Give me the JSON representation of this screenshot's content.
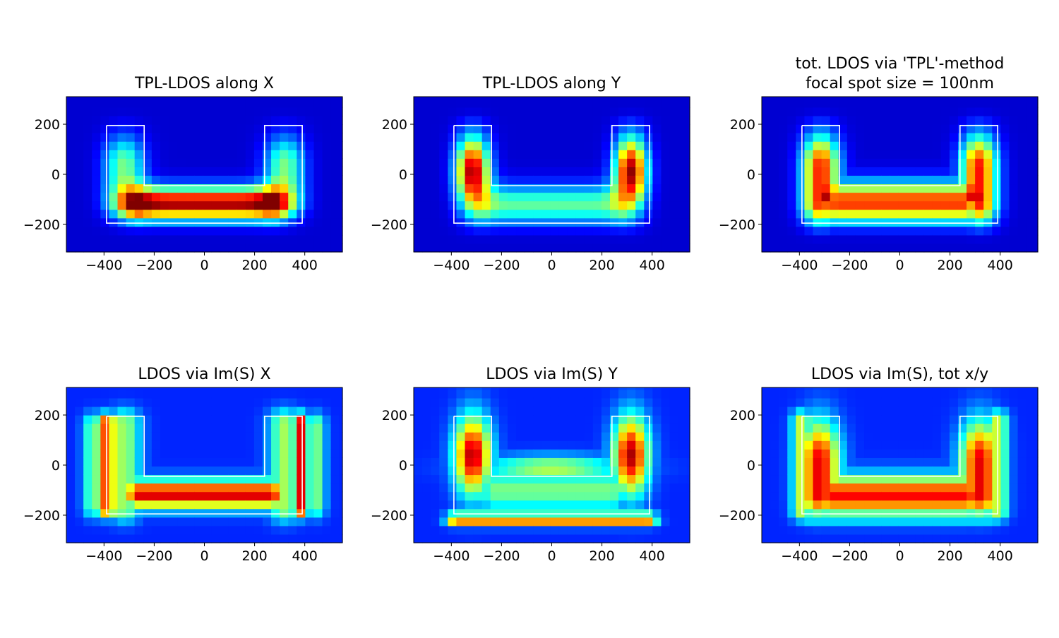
{
  "colormap": "jet",
  "colors": {
    "outline": "#ffffff",
    "axes_frame": "#000000",
    "background": "#ffffff"
  },
  "chart_data": [
    {
      "type": "heatmap",
      "title": "TPL-LDOS along X",
      "xlabel": "",
      "ylabel": "",
      "xlim": [
        -550,
        550
      ],
      "ylim": [
        -310,
        310
      ],
      "xticks": [
        -400,
        -200,
        0,
        200,
        400
      ],
      "yticks": [
        -200,
        0,
        200
      ],
      "xtick_labels": [
        "−400",
        "−200",
        "0",
        "200",
        "400"
      ],
      "ytick_labels": [
        "−200",
        "0",
        "200"
      ],
      "pattern": "tpl_x",
      "grid": false,
      "colorbar": false
    },
    {
      "type": "heatmap",
      "title": "TPL-LDOS along Y",
      "xlabel": "",
      "ylabel": "",
      "xlim": [
        -550,
        550
      ],
      "ylim": [
        -310,
        310
      ],
      "xticks": [
        -400,
        -200,
        0,
        200,
        400
      ],
      "yticks": [
        -200,
        0,
        200
      ],
      "xtick_labels": [
        "−400",
        "−200",
        "0",
        "200",
        "400"
      ],
      "ytick_labels": [
        "−200",
        "0",
        "200"
      ],
      "pattern": "tpl_y",
      "grid": false,
      "colorbar": false
    },
    {
      "type": "heatmap",
      "title": "tot. LDOS via 'TPL'-method\nfocal spot size = 100nm",
      "xlabel": "",
      "ylabel": "",
      "xlim": [
        -550,
        550
      ],
      "ylim": [
        -310,
        310
      ],
      "xticks": [
        -400,
        -200,
        0,
        200,
        400
      ],
      "yticks": [
        -200,
        0,
        200
      ],
      "xtick_labels": [
        "−400",
        "−200",
        "0",
        "200",
        "400"
      ],
      "ytick_labels": [
        "−200",
        "0",
        "200"
      ],
      "pattern": "tpl_tot",
      "grid": false,
      "colorbar": false
    },
    {
      "type": "heatmap",
      "title": "LDOS via Im(S) X",
      "xlabel": "",
      "ylabel": "",
      "xlim": [
        -550,
        550
      ],
      "ylim": [
        -310,
        310
      ],
      "xticks": [
        -400,
        -200,
        0,
        200,
        400
      ],
      "yticks": [
        -200,
        0,
        200
      ],
      "xtick_labels": [
        "−400",
        "−200",
        "0",
        "200",
        "400"
      ],
      "ytick_labels": [
        "−200",
        "0",
        "200"
      ],
      "pattern": "ims_x",
      "grid": false,
      "colorbar": false
    },
    {
      "type": "heatmap",
      "title": "LDOS via Im(S) Y",
      "xlabel": "",
      "ylabel": "",
      "xlim": [
        -550,
        550
      ],
      "ylim": [
        -310,
        310
      ],
      "xticks": [
        -400,
        -200,
        0,
        200,
        400
      ],
      "yticks": [
        -200,
        0,
        200
      ],
      "xtick_labels": [
        "−400",
        "−200",
        "0",
        "200",
        "400"
      ],
      "ytick_labels": [
        "−200",
        "0",
        "200"
      ],
      "pattern": "ims_y",
      "grid": false,
      "colorbar": false
    },
    {
      "type": "heatmap",
      "title": "LDOS via Im(S), tot x/y",
      "xlabel": "",
      "ylabel": "",
      "xlim": [
        -550,
        550
      ],
      "ylim": [
        -310,
        310
      ],
      "xticks": [
        -400,
        -200,
        0,
        200,
        400
      ],
      "yticks": [
        -200,
        0,
        200
      ],
      "xtick_labels": [
        "−400",
        "−200",
        "0",
        "200",
        "400"
      ],
      "ytick_labels": [
        "−200",
        "0",
        "200"
      ],
      "pattern": "ims_tot",
      "grid": false,
      "colorbar": false
    }
  ],
  "structure_outline": {
    "shape": "U",
    "description_points": [
      [
        -390,
        195
      ],
      [
        -240,
        195
      ],
      [
        -240,
        -45
      ],
      [
        240,
        -45
      ],
      [
        240,
        195
      ],
      [
        390,
        195
      ],
      [
        390,
        -195
      ],
      [
        -390,
        -195
      ],
      [
        -390,
        195
      ]
    ]
  }
}
